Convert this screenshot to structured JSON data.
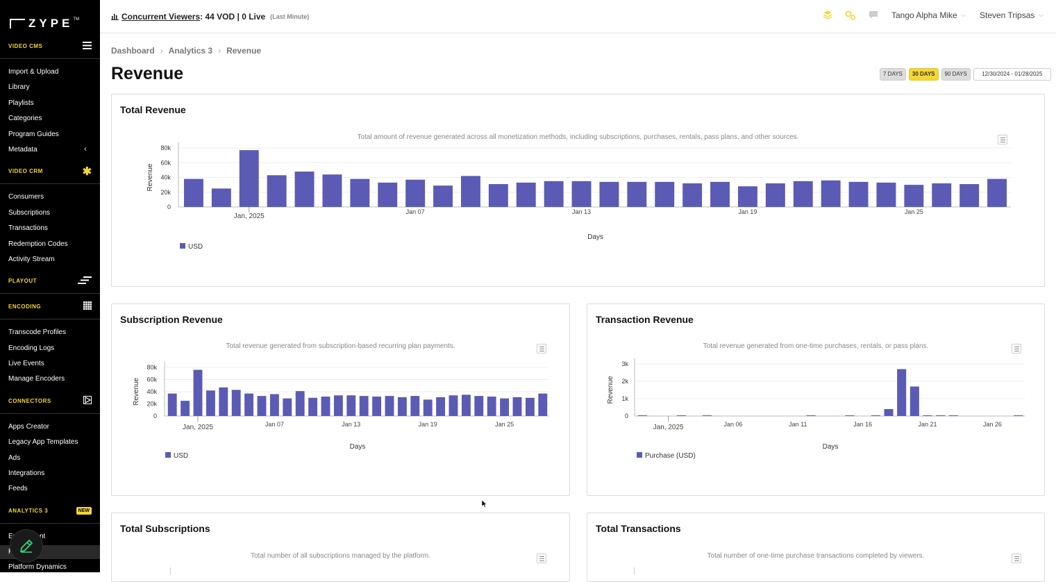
{
  "brand": {
    "name": "ZYPE",
    "tm": "TM"
  },
  "sidebar": {
    "sections": [
      {
        "label": "VIDEO CMS",
        "icon": "hamburger-icon",
        "items": [
          "Import & Upload",
          "Library",
          "Playlists",
          "Categories",
          "Program Guides",
          "Metadata"
        ]
      },
      {
        "label": "VIDEO CRM",
        "icon": "asterisk-icon",
        "items": [
          "Consumers",
          "Subscriptions",
          "Transactions",
          "Redemption Codes",
          "Activity Stream"
        ]
      },
      {
        "label": "PLAYOUT",
        "icon": "playout-icon",
        "items": []
      },
      {
        "label": "ENCODING",
        "icon": "grid-icon",
        "items": [
          "Transcode Profiles",
          "Encoding Logs",
          "Live Events",
          "Manage Encoders"
        ]
      },
      {
        "label": "CONNECTORS",
        "icon": "play-icon",
        "items": [
          "Apps Creator",
          "Legacy App Templates",
          "Ads",
          "Integrations",
          "Feeds"
        ]
      },
      {
        "label": "ANALYTICS 3",
        "badge": "NEW",
        "items": [
          "En",
          "nt",
          "R",
          "Platform Dynamics"
        ]
      }
    ]
  },
  "topbar": {
    "viewers_label": "Concurrent Viewers",
    "viewers_value": ": 44 VOD | 0 Live",
    "viewers_note": "(Last Minute)",
    "account": "Tango Alpha Mike",
    "user": "Steven Tripsas"
  },
  "breadcrumb": [
    "Dashboard",
    "Analytics 3",
    "Revenue"
  ],
  "page_title": "Revenue",
  "range": {
    "options": [
      "7 DAYS",
      "30 DAYS",
      "90 DAYS"
    ],
    "active": "30 DAYS",
    "dates": "12/30/2024 - 01/28/2025"
  },
  "cards": {
    "total_revenue": {
      "title": "Total Revenue",
      "desc": "Total amount of revenue generated across all monetization methods, including subscriptions, purchases, rentals, pass plans, and other sources."
    },
    "subscription_revenue": {
      "title": "Subscription Revenue",
      "desc": "Total revenue generated from subscription-based recurring plan payments."
    },
    "transaction_revenue": {
      "title": "Transaction Revenue",
      "desc": "Total revenue generated from one-time purchases, rentals, or pass plans."
    },
    "total_subscriptions": {
      "title": "Total Subscriptions",
      "desc": "Total number of all subscriptions managed by the platform."
    },
    "total_transactions": {
      "title": "Total Transactions",
      "desc": "Total number of one-time purchase transactions completed by viewers."
    }
  },
  "chart_data": [
    {
      "type": "bar",
      "title": "Total Revenue",
      "ylabel": "Revenue",
      "xlabel": "Days",
      "ylim": [
        0,
        80000
      ],
      "yticks": [
        "0",
        "20k",
        "40k",
        "60k",
        "80k"
      ],
      "xticks": [
        "Jan, 2025",
        "Jan 07",
        "Jan 13",
        "Jan 19",
        "Jan 25"
      ],
      "series": [
        {
          "name": "USD",
          "color": "#5b5bb5",
          "values": [
            38000,
            25000,
            77000,
            43000,
            48000,
            44000,
            38000,
            33000,
            37000,
            29000,
            42000,
            31000,
            33000,
            35000,
            35000,
            34000,
            34000,
            34000,
            32000,
            34000,
            28000,
            32000,
            35000,
            36000,
            34000,
            33000,
            30000,
            32000,
            31000,
            38000
          ]
        }
      ]
    },
    {
      "type": "bar",
      "title": "Subscription Revenue",
      "ylabel": "Revenue",
      "xlabel": "Days",
      "ylim": [
        0,
        80000
      ],
      "yticks": [
        "0",
        "20k",
        "40k",
        "60k",
        "80k"
      ],
      "xticks": [
        "Jan, 2025",
        "Jan 07",
        "Jan 13",
        "Jan 19",
        "Jan 25"
      ],
      "series": [
        {
          "name": "USD",
          "color": "#5b5bb5",
          "values": [
            37000,
            25000,
            76000,
            42000,
            47000,
            43000,
            37000,
            33000,
            36000,
            29000,
            41000,
            30000,
            32000,
            34000,
            34000,
            33000,
            32000,
            33000,
            31000,
            33000,
            27000,
            31000,
            34000,
            35000,
            33000,
            32000,
            29000,
            31000,
            30000,
            37000
          ]
        }
      ]
    },
    {
      "type": "bar",
      "title": "Transaction Revenue",
      "ylabel": "Revenue",
      "xlabel": "Days",
      "ylim": [
        0,
        3000
      ],
      "yticks": [
        "0",
        "1k",
        "2k",
        "3k"
      ],
      "xticks": [
        "Jan, 2025",
        "Jan 06",
        "Jan 11",
        "Jan 16",
        "Jan 21",
        "Jan 26"
      ],
      "series": [
        {
          "name": "Purchase (USD)",
          "color": "#5b5bb5",
          "values": [
            20,
            0,
            0,
            20,
            0,
            20,
            0,
            0,
            0,
            0,
            0,
            0,
            0,
            20,
            0,
            0,
            20,
            0,
            20,
            400,
            2700,
            1700,
            20,
            30,
            30,
            0,
            0,
            0,
            0,
            20
          ]
        }
      ]
    }
  ]
}
